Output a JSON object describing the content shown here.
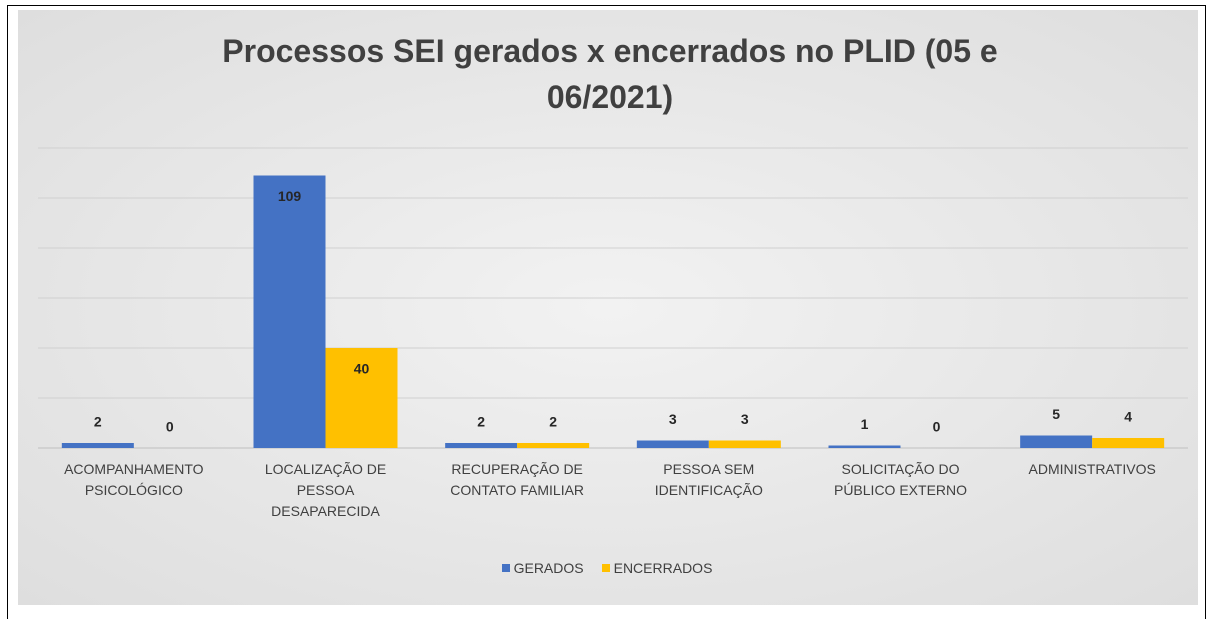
{
  "chart_data": {
    "type": "bar",
    "title": "Processos SEI gerados x encerrados no PLID (05 e 06/2021)",
    "categories": [
      "ACOMPANHAMENTO PSICOLÓGICO",
      "LOCALIZAÇÃO DE PESSOA DESAPARECIDA",
      "RECUPERAÇÃO DE CONTATO FAMILIAR",
      "PESSOA SEM IDENTIFICAÇÃO",
      "SOLICITAÇÃO DO PÚBLICO EXTERNO",
      "ADMINISTRATIVOS"
    ],
    "series": [
      {
        "name": "GERADOS",
        "color": "#4472c4",
        "values": [
          2,
          109,
          2,
          3,
          1,
          5
        ]
      },
      {
        "name": "ENCERRADOS",
        "color": "#ffc000",
        "values": [
          0,
          40,
          2,
          3,
          0,
          4
        ]
      }
    ],
    "ylim": [
      0,
      120
    ],
    "yticks": [
      0,
      20,
      40,
      60,
      80,
      100,
      120
    ],
    "grid": true,
    "legend": "bottom"
  }
}
